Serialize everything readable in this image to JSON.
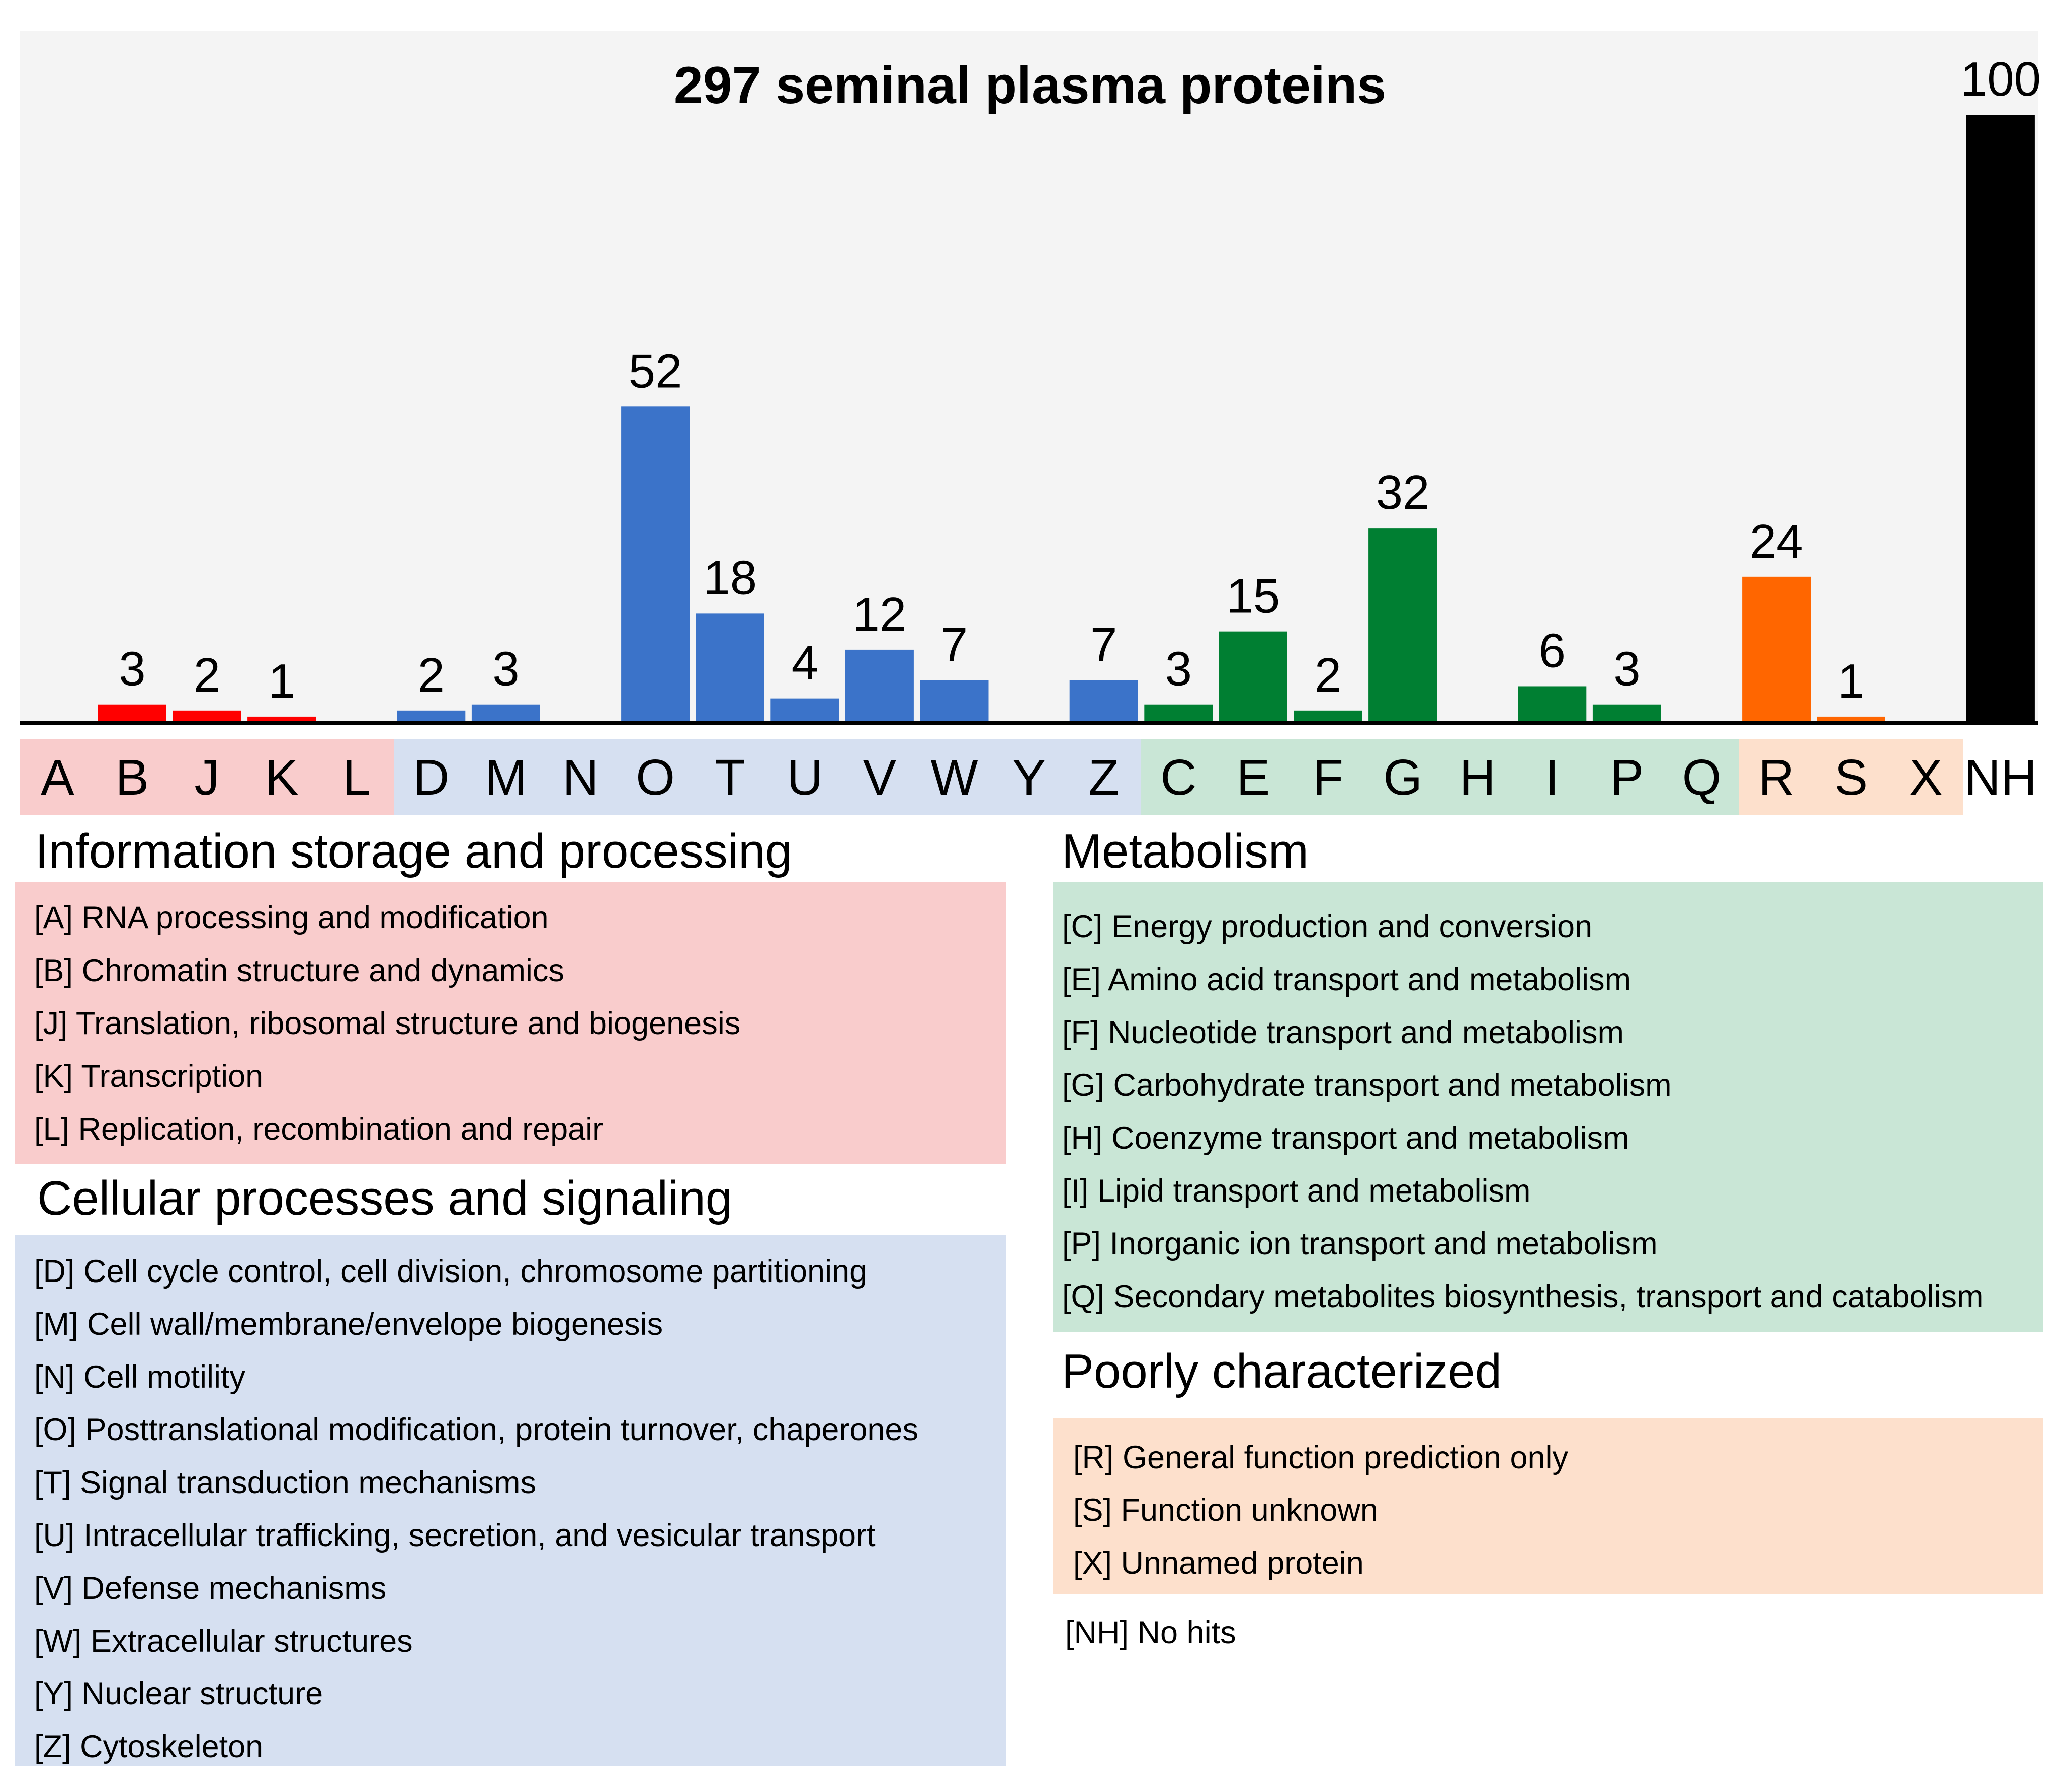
{
  "chart_data": {
    "type": "bar",
    "title": "297 seminal plasma proteins",
    "xlabel": "",
    "ylabel": "",
    "ylim": [
      0,
      100
    ],
    "categories": [
      "A",
      "B",
      "J",
      "K",
      "L",
      "D",
      "M",
      "N",
      "O",
      "T",
      "U",
      "V",
      "W",
      "Y",
      "Z",
      "C",
      "E",
      "F",
      "G",
      "H",
      "I",
      "P",
      "Q",
      "R",
      "S",
      "X",
      "NH"
    ],
    "values": [
      0,
      3,
      2,
      1,
      0,
      2,
      3,
      0,
      52,
      18,
      4,
      12,
      7,
      0,
      7,
      3,
      15,
      2,
      32,
      0,
      6,
      3,
      0,
      24,
      1,
      0,
      100
    ],
    "value_labels": [
      "",
      "3",
      "2",
      "1",
      "",
      "2",
      "3",
      "",
      "52",
      "18",
      "4",
      "12",
      "7",
      "",
      "7",
      "3",
      "15",
      "2",
      "32",
      "",
      "6",
      "3",
      "",
      "24",
      "1",
      "",
      "100"
    ],
    "groups": [
      "info",
      "info",
      "info",
      "info",
      "info",
      "cell",
      "cell",
      "cell",
      "cell",
      "cell",
      "cell",
      "cell",
      "cell",
      "cell",
      "cell",
      "meta",
      "meta",
      "meta",
      "meta",
      "meta",
      "meta",
      "meta",
      "meta",
      "poor",
      "poor",
      "poor",
      "nohit"
    ]
  },
  "colors": {
    "plot_bg": "#f4f4f4",
    "info_bar": "#ff0000",
    "cell_bar": "#3b73c9",
    "meta_bar": "#007f32",
    "poor_bar": "#ff6600",
    "nohit_bar": "#000000",
    "info_band": "#f9cccc",
    "cell_band": "#d6e0f1",
    "meta_band": "#c9e6d6",
    "poor_band": "#fde0cc"
  },
  "sections": {
    "info": {
      "title": "Information storage and processing",
      "items": [
        "[A] RNA processing and modification",
        "[B] Chromatin structure and dynamics",
        "[J] Translation, ribosomal structure and biogenesis",
        "[K] Transcription",
        "[L] Replication, recombination and repair"
      ]
    },
    "cell": {
      "title": "Cellular processes and signaling",
      "items": [
        "[D] Cell cycle control, cell division, chromosome partitioning",
        "[M] Cell wall/membrane/envelope biogenesis",
        "[N] Cell motility",
        "[O] Posttranslational modification, protein turnover, chaperones",
        "[T] Signal transduction mechanisms",
        "[U] Intracellular trafficking, secretion, and vesicular transport",
        "[V] Defense mechanisms",
        "[W] Extracellular structures",
        "[Y] Nuclear structure",
        "[Z] Cytoskeleton"
      ]
    },
    "meta": {
      "title": "Metabolism",
      "items": [
        "[C] Energy production and conversion",
        "[E] Amino acid transport and metabolism",
        "[F] Nucleotide transport and metabolism",
        "[G] Carbohydrate transport and metabolism",
        "[H] Coenzyme transport and metabolism",
        "[I] Lipid transport and metabolism",
        "[P] Inorganic ion transport and metabolism",
        "[Q] Secondary metabolites biosynthesis, transport and catabolism"
      ]
    },
    "poor": {
      "title": "Poorly characterized",
      "items": [
        "[R] General function prediction only",
        "[S] Function unknown",
        "[X] Unnamed protein"
      ]
    }
  },
  "nh_note": "[NH] No hits"
}
